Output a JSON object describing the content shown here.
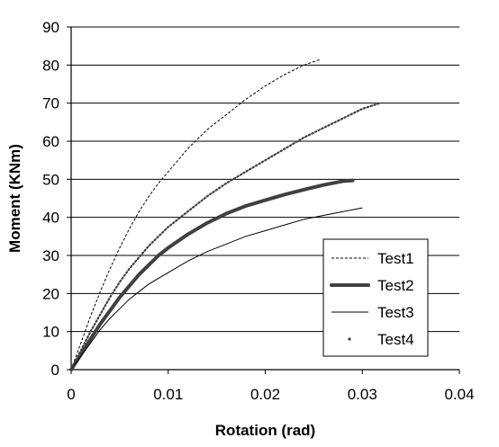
{
  "chart_data": {
    "type": "line",
    "title": "",
    "xlabel": "Rotation (rad)",
    "ylabel": "Moment (KNm)",
    "xlim": [
      0,
      0.04
    ],
    "ylim": [
      0,
      90
    ],
    "x_ticks": [
      "0",
      "0.01",
      "0.02",
      "0.03",
      "0.04"
    ],
    "y_ticks": [
      "0",
      "10",
      "20",
      "30",
      "40",
      "50",
      "60",
      "70",
      "80",
      "90"
    ],
    "grid": "horizontal major gridlines",
    "legend_position": "right",
    "series": [
      {
        "name": "Test1",
        "style": "dashed",
        "color": "#000000",
        "x": [
          0,
          0.001,
          0.002,
          0.003,
          0.004,
          0.005,
          0.006,
          0.007,
          0.008,
          0.009,
          0.01,
          0.012,
          0.014,
          0.016,
          0.018,
          0.02,
          0.022,
          0.024,
          0.0257
        ],
        "y": [
          0,
          7,
          14,
          20.5,
          26.5,
          32,
          37,
          41.5,
          45.5,
          49,
          52,
          58,
          63,
          67,
          71,
          74.5,
          77.5,
          80,
          81.5
        ]
      },
      {
        "name": "Test2",
        "style": "thick",
        "color": "#404040",
        "x": [
          0,
          0.001,
          0.002,
          0.003,
          0.004,
          0.005,
          0.006,
          0.007,
          0.008,
          0.009,
          0.01,
          0.012,
          0.014,
          0.016,
          0.018,
          0.02,
          0.022,
          0.024,
          0.026,
          0.028,
          0.029
        ],
        "y": [
          0,
          4,
          8,
          12,
          15.5,
          19,
          22,
          25,
          27.5,
          30,
          32,
          35.5,
          38.5,
          41,
          43,
          44.5,
          46,
          47.3,
          48.5,
          49.5,
          49.7
        ]
      },
      {
        "name": "Test3",
        "style": "thin",
        "color": "#000000",
        "x": [
          0,
          0.001,
          0.002,
          0.003,
          0.004,
          0.005,
          0.006,
          0.007,
          0.008,
          0.01,
          0.012,
          0.014,
          0.016,
          0.018,
          0.02,
          0.022,
          0.024,
          0.026,
          0.028,
          0.03
        ],
        "y": [
          0,
          3.5,
          7,
          10.5,
          13.5,
          16,
          18.5,
          20.5,
          22.5,
          25.5,
          28.5,
          31,
          33,
          35,
          36.5,
          38,
          39.5,
          40.5,
          41.5,
          42.5
        ]
      },
      {
        "name": "Test4",
        "style": "dots",
        "color": "#404040",
        "x": [
          0,
          0.001,
          0.002,
          0.003,
          0.004,
          0.005,
          0.006,
          0.007,
          0.008,
          0.009,
          0.01,
          0.012,
          0.014,
          0.016,
          0.018,
          0.02,
          0.022,
          0.024,
          0.026,
          0.028,
          0.03,
          0.0318
        ],
        "y": [
          0,
          5,
          10,
          14.5,
          19,
          23,
          26.5,
          29.5,
          32.5,
          35,
          37.5,
          41.5,
          45.5,
          49,
          52,
          55,
          58,
          61,
          63.5,
          66,
          68.5,
          70
        ]
      }
    ]
  }
}
